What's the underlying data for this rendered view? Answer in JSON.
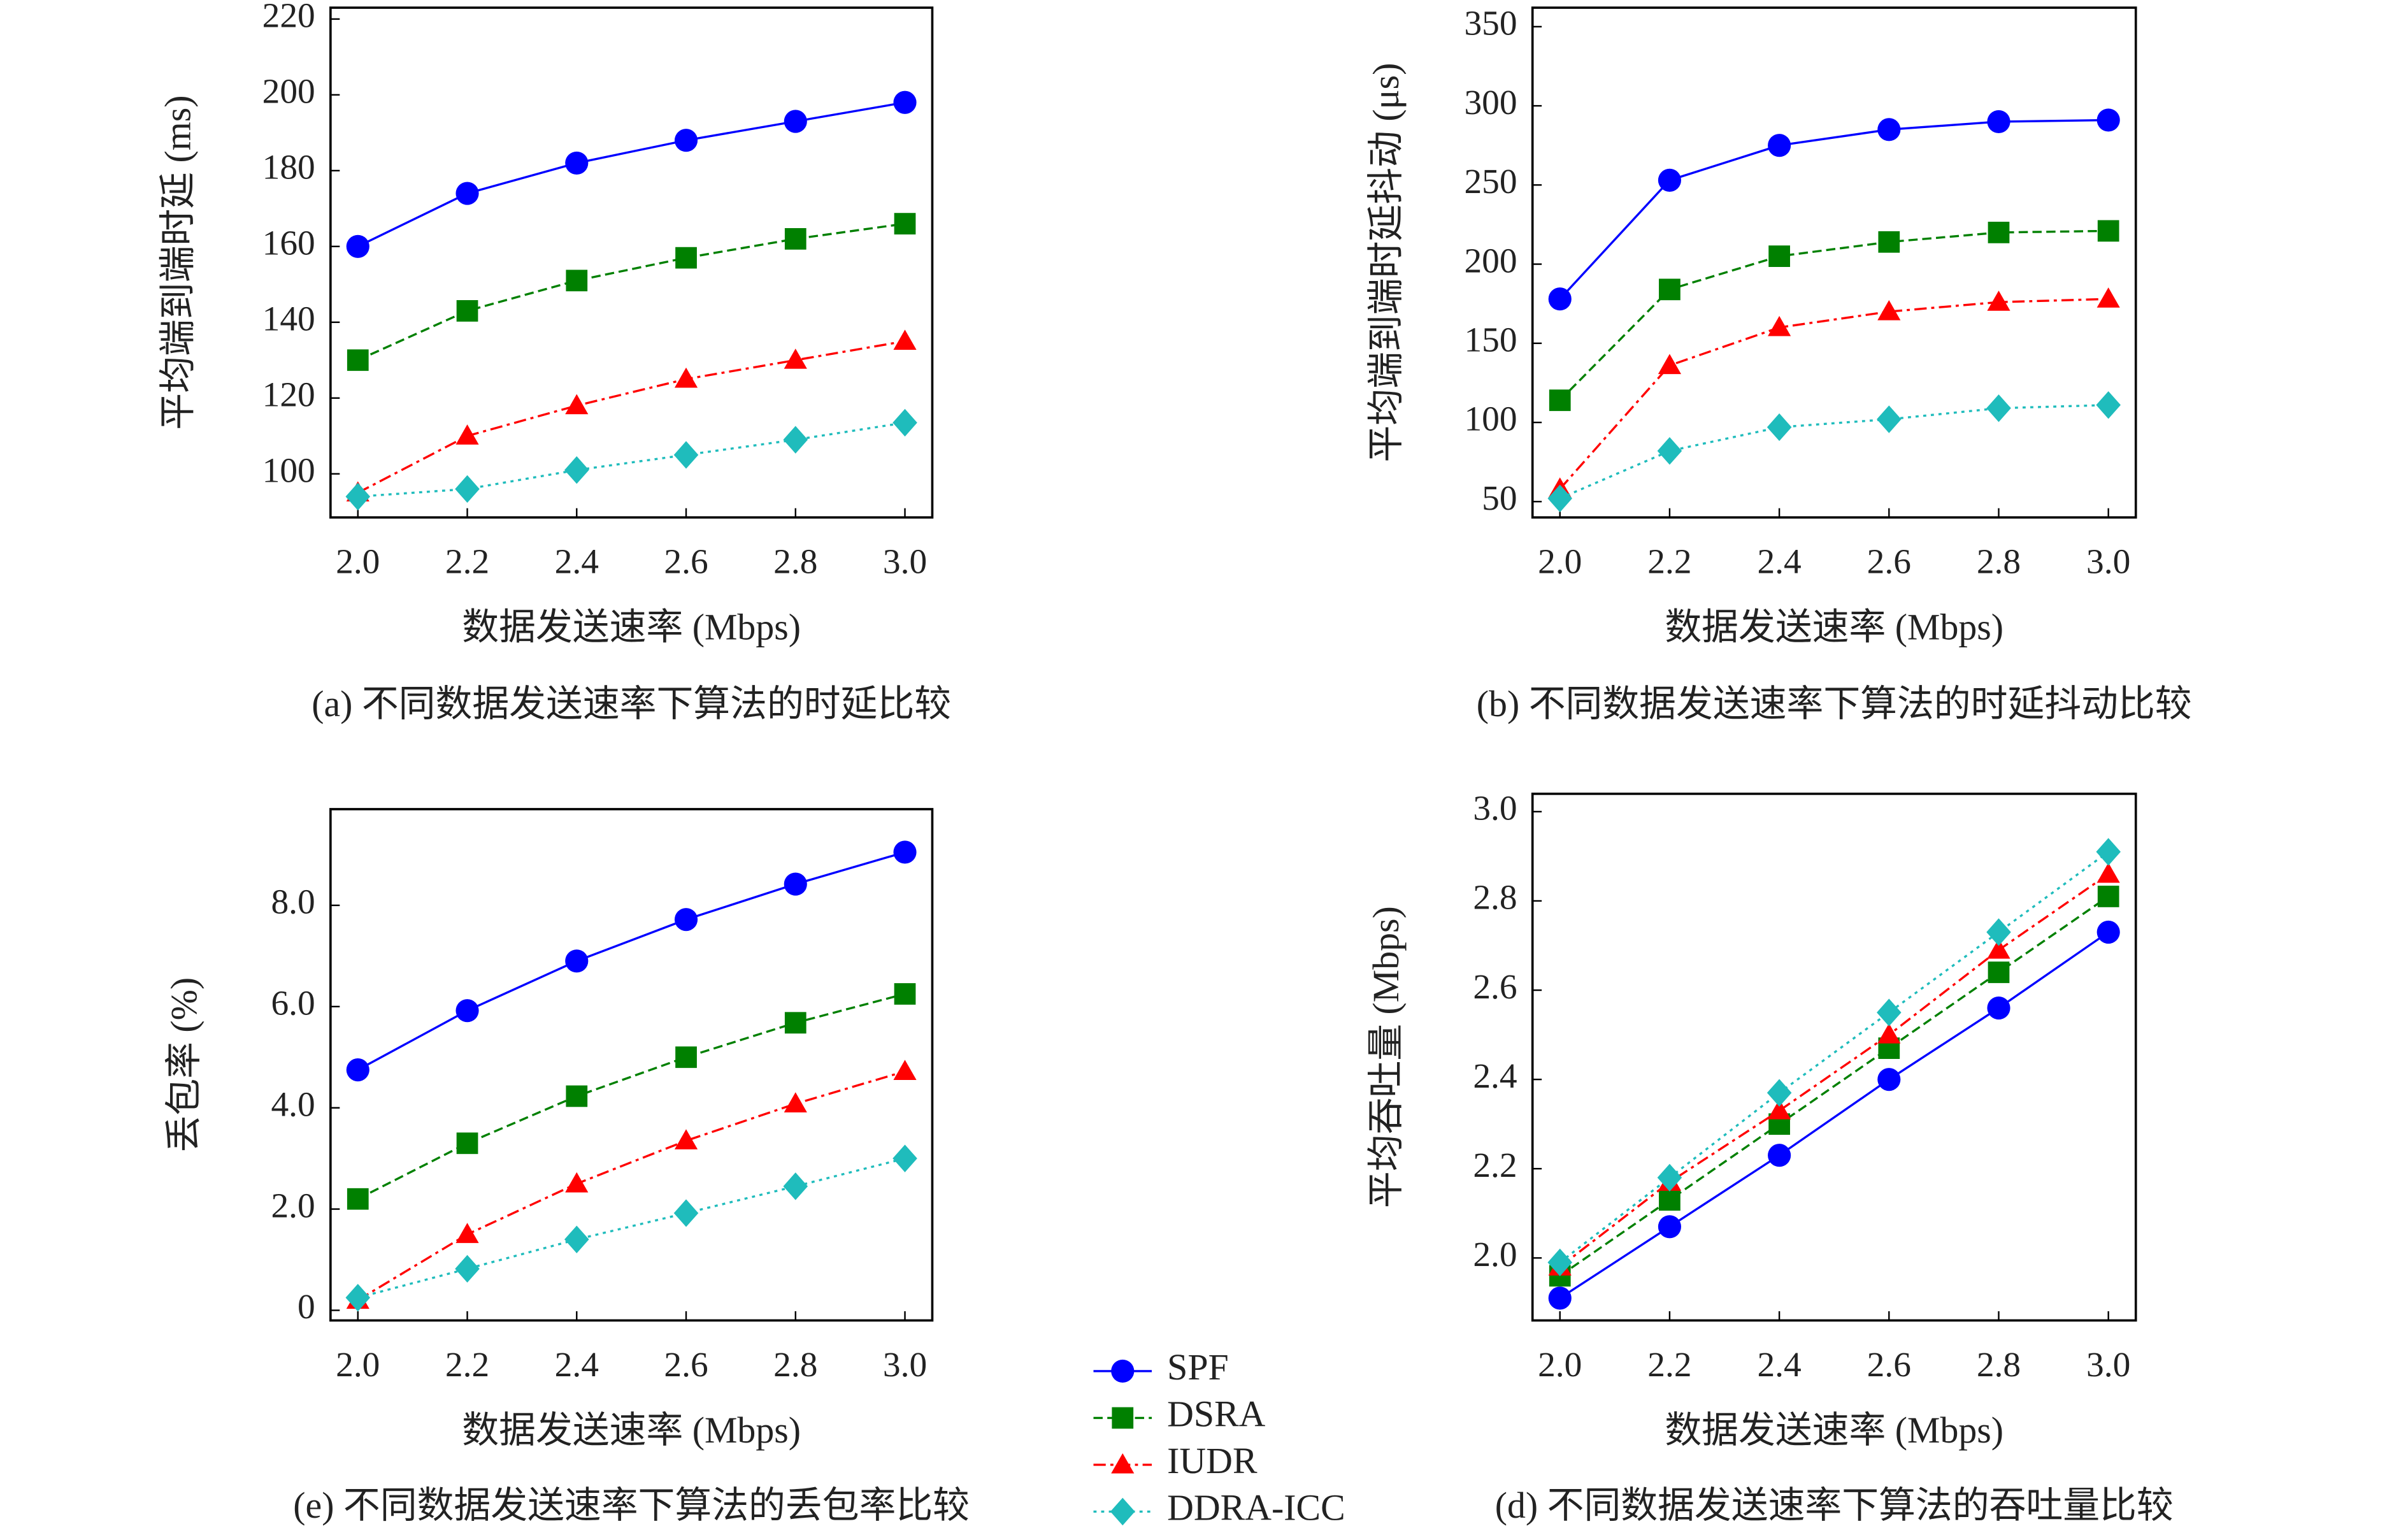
{
  "chart_data": [
    {
      "type": "line",
      "caption": "(a) 不同数据发送速率下算法的时延比较",
      "xlabel": "数据发送速率 (Mbps)",
      "ylabel": "平均端到端时延 (ms)",
      "x": [
        2.0,
        2.2,
        2.4,
        2.6,
        2.8,
        3.0
      ],
      "xlim": [
        1.95,
        3.05
      ],
      "xticks": [
        {
          "value": 2,
          "label": "2.0"
        },
        2.2,
        2.4,
        2.6,
        2.8,
        {
          "value": 3,
          "label": "3.0"
        }
      ],
      "ylim": [
        88.5,
        223
      ],
      "yticks": [
        100,
        120,
        140,
        160,
        180,
        200,
        220
      ],
      "series": [
        {
          "name": "SPF",
          "color": "#0000ff",
          "marker": "circle",
          "linestyle": "solid",
          "values": [
            160,
            174,
            182,
            188,
            193,
            198
          ]
        },
        {
          "name": "DSRA",
          "color": "#008000",
          "marker": "square",
          "linestyle": "dashed",
          "values": [
            130,
            143,
            151,
            157,
            162,
            166
          ]
        },
        {
          "name": "IUDR",
          "color": "#ff0000",
          "marker": "triangle",
          "linestyle": "dashdot",
          "values": [
            95,
            110,
            118,
            125,
            130,
            135
          ]
        },
        {
          "name": "DDRA-ICC",
          "color": "#1fbcbc",
          "marker": "diamond",
          "linestyle": "dotted",
          "values": [
            94,
            96,
            101,
            105,
            109,
            113.5
          ]
        }
      ]
    },
    {
      "type": "line",
      "caption": "(b) 不同数据发送速率下算法的时延抖动比较",
      "xlabel": "数据发送速率 (Mbps)",
      "ylabel": "平均端到端时延抖动 (μs)",
      "x": [
        2.0,
        2.2,
        2.4,
        2.6,
        2.8,
        3.0
      ],
      "xlim": [
        1.95,
        3.05
      ],
      "xticks": [
        {
          "value": 2,
          "label": "2.0"
        },
        2.2,
        2.4,
        2.6,
        2.8,
        {
          "value": 3,
          "label": "3.0"
        }
      ],
      "ylim": [
        40,
        362
      ],
      "yticks": [
        50,
        100,
        150,
        200,
        250,
        300,
        350
      ],
      "series": [
        {
          "color": "#0000ff",
          "marker": "circle",
          "linestyle": "solid",
          "values": [
            178,
            253,
            275,
            285,
            290,
            291
          ]
        },
        {
          "color": "#008000",
          "marker": "square",
          "linestyle": "dashed",
          "values": [
            114,
            184,
            205,
            214,
            220,
            221
          ]
        },
        {
          "color": "#ff0000",
          "marker": "triangle",
          "linestyle": "dashdot",
          "values": [
            58,
            136,
            160,
            170,
            176,
            178
          ]
        },
        {
          "color": "#1fbcbc",
          "marker": "diamond",
          "linestyle": "dotted",
          "values": [
            52,
            82,
            97,
            102,
            109,
            111
          ]
        }
      ]
    },
    {
      "type": "line",
      "caption": "(e) 不同数据发送速率下算法的丢包率比较",
      "xlabel": "数据发送速率 (Mbps)",
      "ylabel": "丢包率 (%)",
      "x": [
        2.0,
        2.2,
        2.4,
        2.6,
        2.8,
        3.0
      ],
      "xlim": [
        1.95,
        3.05
      ],
      "xticks": [
        {
          "value": 2,
          "label": "2.0"
        },
        2.2,
        2.4,
        2.6,
        2.8,
        {
          "value": 3,
          "label": "3.0"
        }
      ],
      "ylim": [
        -0.2,
        9.9
      ],
      "yticks": [
        0,
        {
          "value": 2,
          "label": "2.0"
        },
        {
          "value": 4,
          "label": "4.0"
        },
        {
          "value": 6,
          "label": "6.0"
        },
        {
          "value": 8,
          "label": "8.0"
        }
      ],
      "series": [
        {
          "color": "#0000ff",
          "marker": "circle",
          "linestyle": "solid",
          "values": [
            4.75,
            5.92,
            6.9,
            7.72,
            8.42,
            9.05
          ]
        },
        {
          "color": "#008000",
          "marker": "square",
          "linestyle": "dashed",
          "values": [
            2.2,
            3.3,
            4.23,
            5.0,
            5.68,
            6.25
          ]
        },
        {
          "color": "#ff0000",
          "marker": "triangle",
          "linestyle": "dashdot",
          "values": [
            0.2,
            1.5,
            2.5,
            3.35,
            4.08,
            4.72
          ]
        },
        {
          "color": "#1fbcbc",
          "marker": "diamond",
          "linestyle": "dotted",
          "values": [
            0.25,
            0.82,
            1.4,
            1.92,
            2.45,
            3.0
          ]
        }
      ]
    },
    {
      "type": "line",
      "caption": "(d) 不同数据发送速率下算法的吞吐量比较",
      "xlabel": "数据发送速率 (Mbps)",
      "ylabel": "平均吞吐量 (Mbps)",
      "x": [
        2.0,
        2.2,
        2.4,
        2.6,
        2.8,
        3.0
      ],
      "xlim": [
        1.95,
        3.05
      ],
      "xticks": [
        {
          "value": 2,
          "label": "2.0"
        },
        2.2,
        2.4,
        2.6,
        2.8,
        {
          "value": 3,
          "label": "3.0"
        }
      ],
      "ylim": [
        1.86,
        3.04
      ],
      "yticks": [
        {
          "value": 2,
          "label": "2.0"
        },
        2.2,
        2.4,
        2.6,
        2.8,
        {
          "value": 3,
          "label": "3.0"
        }
      ],
      "series": [
        {
          "color": "#0000ff",
          "marker": "circle",
          "linestyle": "solid",
          "values": [
            1.91,
            2.07,
            2.23,
            2.4,
            2.56,
            2.73
          ]
        },
        {
          "color": "#008000",
          "marker": "square",
          "linestyle": "dashed",
          "values": [
            1.96,
            2.13,
            2.3,
            2.47,
            2.64,
            2.81
          ]
        },
        {
          "color": "#ff0000",
          "marker": "triangle",
          "linestyle": "dashdot",
          "values": [
            1.98,
            2.17,
            2.33,
            2.5,
            2.69,
            2.86
          ]
        },
        {
          "color": "#1fbcbc",
          "marker": "diamond",
          "linestyle": "dotted",
          "values": [
            1.99,
            2.18,
            2.37,
            2.55,
            2.73,
            2.91
          ]
        }
      ]
    }
  ]
}
